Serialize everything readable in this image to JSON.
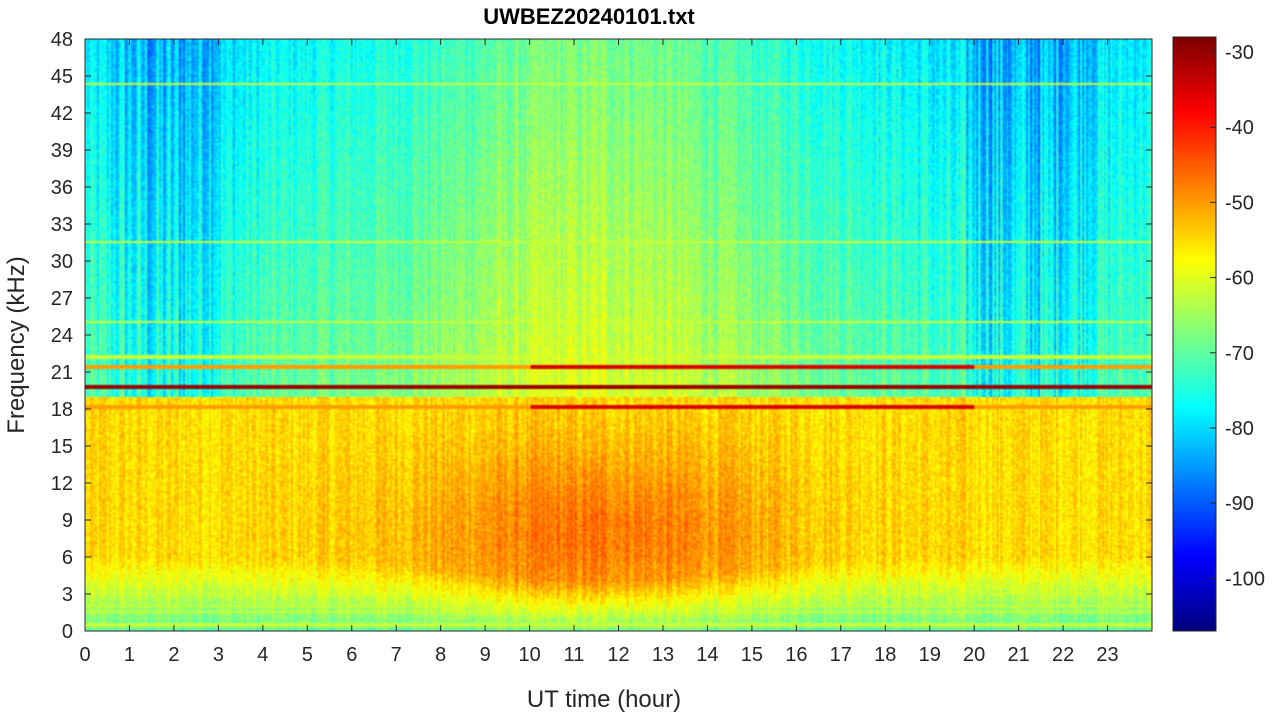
{
  "chart_data": {
    "type": "heatmap",
    "title": "UWBEZ20240101.txt",
    "xlabel": "UT time (hour)",
    "ylabel": "Frequency (kHz)",
    "xlim": [
      0,
      24
    ],
    "ylim": [
      0,
      48
    ],
    "x_ticks": [
      "0",
      "1",
      "2",
      "3",
      "4",
      "5",
      "6",
      "7",
      "8",
      "9",
      "10",
      "11",
      "12",
      "13",
      "14",
      "15",
      "16",
      "17",
      "18",
      "19",
      "20",
      "21",
      "22",
      "23"
    ],
    "y_ticks": [
      "0",
      "3",
      "6",
      "9",
      "12",
      "15",
      "18",
      "21",
      "24",
      "27",
      "30",
      "33",
      "36",
      "39",
      "42",
      "45",
      "48"
    ],
    "colorbar": {
      "colormap": "jet",
      "clim": [
        -107,
        -28
      ],
      "ticks": [
        "-30",
        "-40",
        "-50",
        "-60",
        "-70",
        "-80",
        "-90",
        "-100"
      ]
    },
    "features": {
      "strong_lines_khz": [
        19.8,
        18.2,
        21.4
      ],
      "weak_lines_khz": [
        44.3,
        31.5,
        25,
        22.2,
        4.2,
        3,
        2,
        1.5,
        0.5
      ],
      "daytime_enhancement": {
        "center_hour": 11.5,
        "peak_freq_khz": 8,
        "peak_level": -45
      },
      "background_level_high_freq": -78,
      "background_level_low_freq": -55
    }
  }
}
